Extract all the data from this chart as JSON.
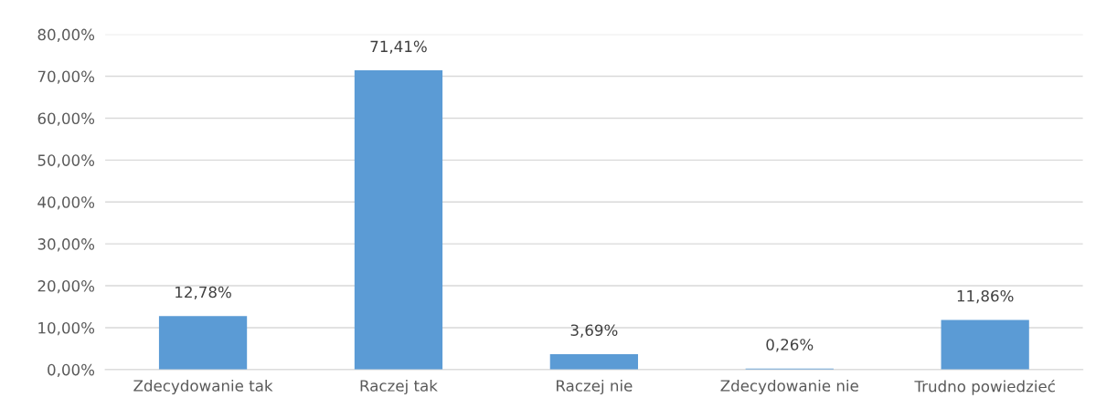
{
  "chart_data": {
    "type": "bar",
    "categories": [
      "Zdecydowanie tak",
      "Raczej tak",
      "Raczej nie",
      "Zdecydowanie nie",
      "Trudno powiedzieć"
    ],
    "values": [
      12.78,
      71.41,
      3.69,
      0.26,
      11.86
    ],
    "value_labels": [
      "12,78%",
      "71,41%",
      "3,69%",
      "0,26%",
      "11,86%"
    ],
    "color": "#5b9bd5",
    "ylim": [
      0,
      80
    ],
    "yticks": [
      {
        "value": 0,
        "label": "0,00%"
      },
      {
        "value": 10,
        "label": "10,00%"
      },
      {
        "value": 20,
        "label": "20,00%"
      },
      {
        "value": 30,
        "label": "30,00%"
      },
      {
        "value": 40,
        "label": "40,00%"
      },
      {
        "value": 50,
        "label": "50,00%"
      },
      {
        "value": 60,
        "label": "60,00%"
      },
      {
        "value": 70,
        "label": "70,00%"
      },
      {
        "value": 80,
        "label": "80,00%"
      }
    ],
    "grid": "y"
  }
}
